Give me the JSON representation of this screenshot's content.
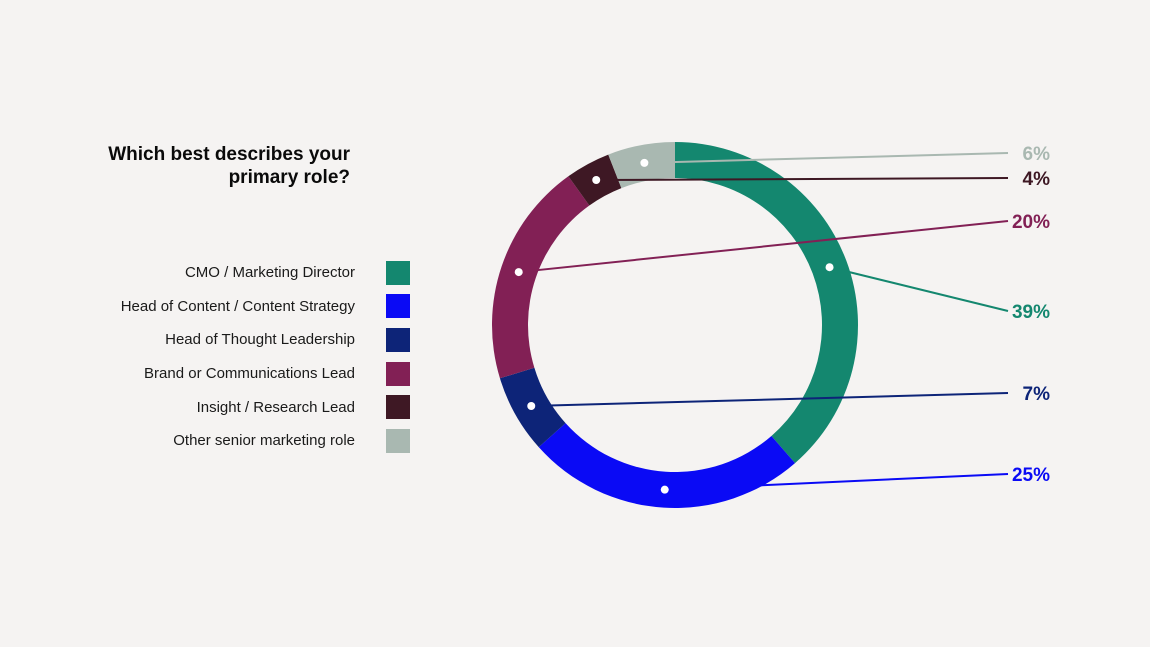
{
  "chart_data": {
    "type": "pie",
    "title": "Which best describes your primary role?",
    "categories": [
      "CMO / Marketing Director",
      "Head of Content / Content Strategy",
      "Head of Thought Leadership",
      "Brand or Communications Lead",
      "Insight / Research Lead",
      "Other senior marketing role"
    ],
    "values": [
      39,
      25,
      7,
      20,
      4,
      6
    ],
    "data_labels": [
      "39%",
      "25%",
      "7%",
      "20%",
      "4%",
      "6%"
    ],
    "colors": [
      "#14876f",
      "#0a0af5",
      "#0d2478",
      "#822055",
      "#3e1824",
      "#a9b8b1"
    ],
    "legend_position": "left",
    "style": "donut"
  }
}
